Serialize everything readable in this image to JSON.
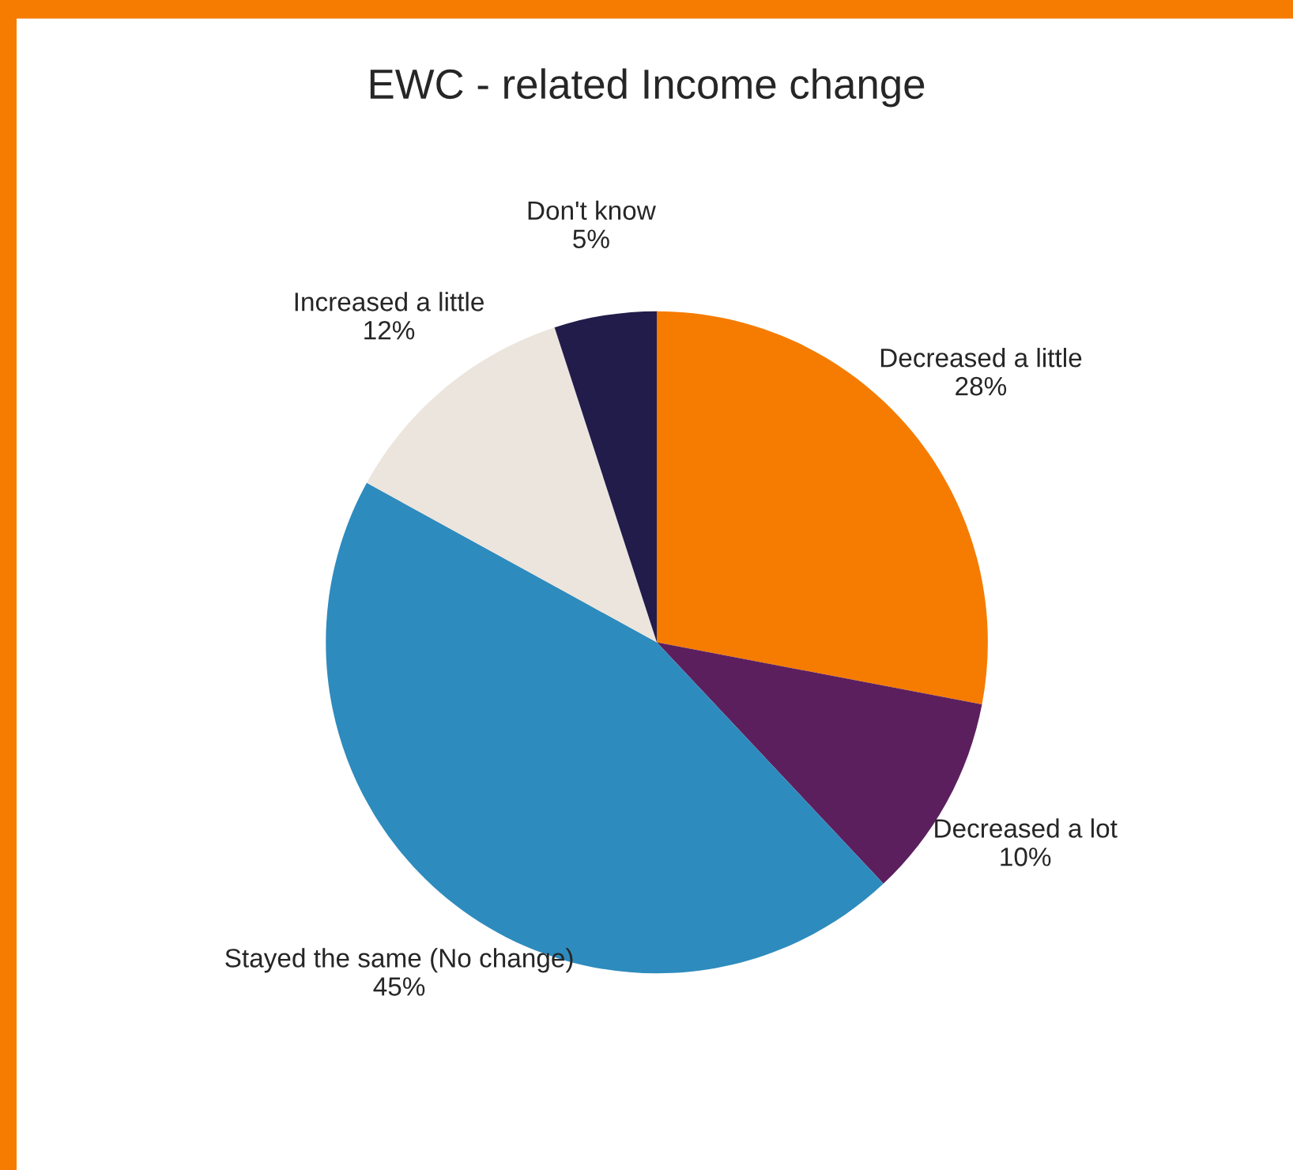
{
  "chart_data": {
    "type": "pie",
    "title": "EWC - related Income change",
    "categories": [
      "Decreased a little",
      "Decreased a lot",
      "Stayed the same (No change)",
      "Increased a little",
      "Don't know"
    ],
    "values": [
      28,
      10,
      45,
      12,
      5
    ],
    "colors": [
      "#f57c00",
      "#5c1f5e",
      "#2e8bbd",
      "#ebe5dd",
      "#221c4b"
    ],
    "value_labels": [
      "28%",
      "10%",
      "45%",
      "12%",
      "5%"
    ]
  }
}
